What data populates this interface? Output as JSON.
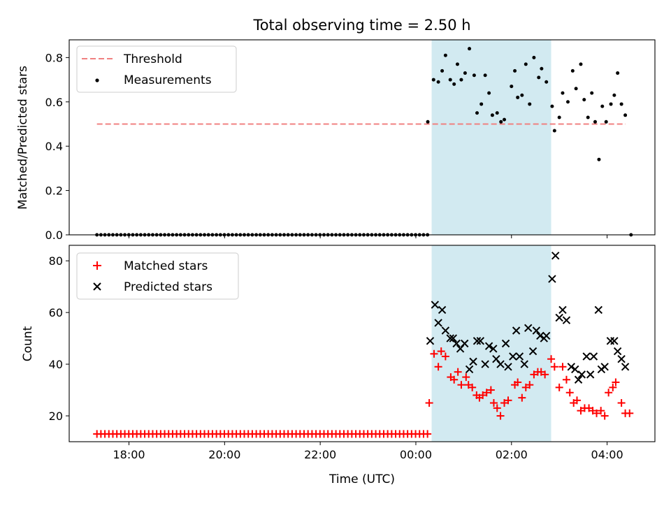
{
  "colors": {
    "threshold": "#f08080",
    "measurements": "#000000",
    "matched": "#ff0000",
    "predicted": "#000000",
    "highlight": "#add8e6"
  },
  "chart_data": [
    {
      "type": "scatter",
      "title": "Total observing time = 2.50 h",
      "ylabel": "Matched/Predicted stars",
      "xlabel": "",
      "x_unit": "hours, UTC clock (values beyond 24 are after midnight)",
      "xlim": [
        16.75,
        29.0
      ],
      "ylim": [
        0.0,
        0.88
      ],
      "yticks": [
        "0.0",
        "0.2",
        "0.4",
        "0.6",
        "0.8"
      ],
      "highlight_span": [
        24.33,
        26.83
      ],
      "legend": {
        "placement": "upper-left",
        "entries": [
          "Threshold",
          "Measurements"
        ]
      },
      "threshold": {
        "name": "Threshold",
        "value": 0.5,
        "x_range": [
          17.33,
          29.42
        ]
      },
      "series": [
        {
          "name": "Measurements",
          "zero_start": 17.33,
          "zero_end": 24.25,
          "zero_step": 0.0833,
          "points": [
            [
              24.25,
              0.51
            ],
            [
              24.37,
              0.7
            ],
            [
              24.47,
              0.69
            ],
            [
              24.55,
              0.74
            ],
            [
              24.62,
              0.81
            ],
            [
              24.72,
              0.7
            ],
            [
              24.8,
              0.68
            ],
            [
              24.87,
              0.77
            ],
            [
              24.95,
              0.7
            ],
            [
              25.03,
              0.73
            ],
            [
              25.12,
              0.84
            ],
            [
              25.22,
              0.72
            ],
            [
              25.28,
              0.55
            ],
            [
              25.37,
              0.59
            ],
            [
              25.45,
              0.72
            ],
            [
              25.53,
              0.64
            ],
            [
              25.6,
              0.54
            ],
            [
              25.7,
              0.55
            ],
            [
              25.78,
              0.51
            ],
            [
              25.85,
              0.52
            ],
            [
              26.0,
              0.67
            ],
            [
              26.07,
              0.74
            ],
            [
              26.13,
              0.62
            ],
            [
              26.22,
              0.63
            ],
            [
              26.3,
              0.77
            ],
            [
              26.38,
              0.59
            ],
            [
              26.47,
              0.8
            ],
            [
              26.57,
              0.71
            ],
            [
              26.63,
              0.75
            ],
            [
              26.73,
              0.69
            ],
            [
              26.85,
              0.58
            ],
            [
              26.9,
              0.47
            ],
            [
              27.0,
              0.53
            ],
            [
              27.07,
              0.64
            ],
            [
              27.18,
              0.6
            ],
            [
              27.28,
              0.74
            ],
            [
              27.35,
              0.66
            ],
            [
              27.45,
              0.77
            ],
            [
              27.52,
              0.61
            ],
            [
              27.6,
              0.53
            ],
            [
              27.68,
              0.64
            ],
            [
              27.75,
              0.51
            ],
            [
              27.83,
              0.34
            ],
            [
              27.9,
              0.58
            ],
            [
              27.98,
              0.51
            ],
            [
              28.08,
              0.59
            ],
            [
              28.15,
              0.63
            ],
            [
              28.22,
              0.73
            ],
            [
              28.3,
              0.59
            ],
            [
              28.38,
              0.54
            ],
            [
              28.5,
              0.0
            ]
          ]
        }
      ]
    },
    {
      "type": "scatter",
      "title": "",
      "ylabel": "Count",
      "xlabel": "Time (UTC)",
      "x_unit": "hours, UTC clock (values beyond 24 are after midnight)",
      "xlim": [
        16.75,
        29.0
      ],
      "ylim": [
        10,
        86
      ],
      "yticks": [
        "20",
        "40",
        "60",
        "80"
      ],
      "xticks": [
        {
          "label": "18:00",
          "value": 18
        },
        {
          "label": "20:00",
          "value": 20
        },
        {
          "label": "22:00",
          "value": 22
        },
        {
          "label": "00:00",
          "value": 24
        },
        {
          "label": "02:00",
          "value": 26
        },
        {
          "label": "04:00",
          "value": 28
        }
      ],
      "highlight_span": [
        24.33,
        26.83
      ],
      "legend": {
        "placement": "upper-left",
        "entries": [
          "Matched stars",
          "Predicted stars"
        ]
      },
      "series": [
        {
          "name": "Matched stars",
          "constant_value": 13,
          "constant_start": 17.33,
          "constant_end": 24.25,
          "constant_step": 0.0833,
          "points": [
            [
              24.28,
              25
            ],
            [
              24.38,
              44
            ],
            [
              24.47,
              39
            ],
            [
              24.53,
              45
            ],
            [
              24.62,
              43
            ],
            [
              24.73,
              35
            ],
            [
              24.8,
              34
            ],
            [
              24.88,
              37
            ],
            [
              24.95,
              32
            ],
            [
              25.05,
              35
            ],
            [
              25.1,
              32
            ],
            [
              25.18,
              31
            ],
            [
              25.27,
              28
            ],
            [
              25.33,
              27
            ],
            [
              25.4,
              28
            ],
            [
              25.48,
              29
            ],
            [
              25.57,
              30
            ],
            [
              25.63,
              25
            ],
            [
              25.7,
              23
            ],
            [
              25.77,
              20
            ],
            [
              25.85,
              25
            ],
            [
              25.93,
              26
            ],
            [
              26.07,
              32
            ],
            [
              26.13,
              33
            ],
            [
              26.22,
              27
            ],
            [
              26.3,
              31
            ],
            [
              26.38,
              32
            ],
            [
              26.47,
              36
            ],
            [
              26.55,
              37
            ],
            [
              26.62,
              37
            ],
            [
              26.7,
              36
            ],
            [
              26.83,
              42
            ],
            [
              26.9,
              39
            ],
            [
              27.0,
              31
            ],
            [
              27.07,
              39
            ],
            [
              27.15,
              34
            ],
            [
              27.22,
              29
            ],
            [
              27.3,
              25
            ],
            [
              27.37,
              26
            ],
            [
              27.45,
              22
            ],
            [
              27.53,
              23
            ],
            [
              27.62,
              23
            ],
            [
              27.7,
              22
            ],
            [
              27.78,
              21
            ],
            [
              27.87,
              22
            ],
            [
              27.95,
              20
            ],
            [
              28.03,
              29
            ],
            [
              28.12,
              31
            ],
            [
              28.18,
              33
            ],
            [
              28.3,
              25
            ],
            [
              28.38,
              21
            ],
            [
              28.47,
              21
            ]
          ]
        },
        {
          "name": "Predicted stars",
          "points": [
            [
              24.3,
              49
            ],
            [
              24.4,
              63
            ],
            [
              24.47,
              56
            ],
            [
              24.55,
              61
            ],
            [
              24.62,
              53
            ],
            [
              24.72,
              50
            ],
            [
              24.78,
              50
            ],
            [
              24.85,
              48
            ],
            [
              24.93,
              46
            ],
            [
              25.02,
              48
            ],
            [
              25.12,
              38
            ],
            [
              25.2,
              41
            ],
            [
              25.28,
              49
            ],
            [
              25.35,
              49
            ],
            [
              25.45,
              40
            ],
            [
              25.53,
              47
            ],
            [
              25.62,
              46
            ],
            [
              25.68,
              42
            ],
            [
              25.77,
              40
            ],
            [
              25.88,
              48
            ],
            [
              25.93,
              39
            ],
            [
              26.03,
              43
            ],
            [
              26.1,
              53
            ],
            [
              26.17,
              43
            ],
            [
              26.27,
              40
            ],
            [
              26.35,
              54
            ],
            [
              26.45,
              45
            ],
            [
              26.52,
              53
            ],
            [
              26.6,
              51
            ],
            [
              26.68,
              50
            ],
            [
              26.73,
              51
            ],
            [
              26.85,
              73
            ],
            [
              26.92,
              82
            ],
            [
              27.0,
              58
            ],
            [
              27.07,
              61
            ],
            [
              27.15,
              57
            ],
            [
              27.25,
              39
            ],
            [
              27.33,
              38
            ],
            [
              27.4,
              34
            ],
            [
              27.47,
              36
            ],
            [
              27.57,
              43
            ],
            [
              27.65,
              36
            ],
            [
              27.72,
              43
            ],
            [
              27.82,
              61
            ],
            [
              27.88,
              38
            ],
            [
              27.95,
              39
            ],
            [
              28.07,
              49
            ],
            [
              28.15,
              49
            ],
            [
              28.22,
              45
            ],
            [
              28.3,
              42
            ],
            [
              28.38,
              39
            ]
          ]
        }
      ]
    }
  ]
}
